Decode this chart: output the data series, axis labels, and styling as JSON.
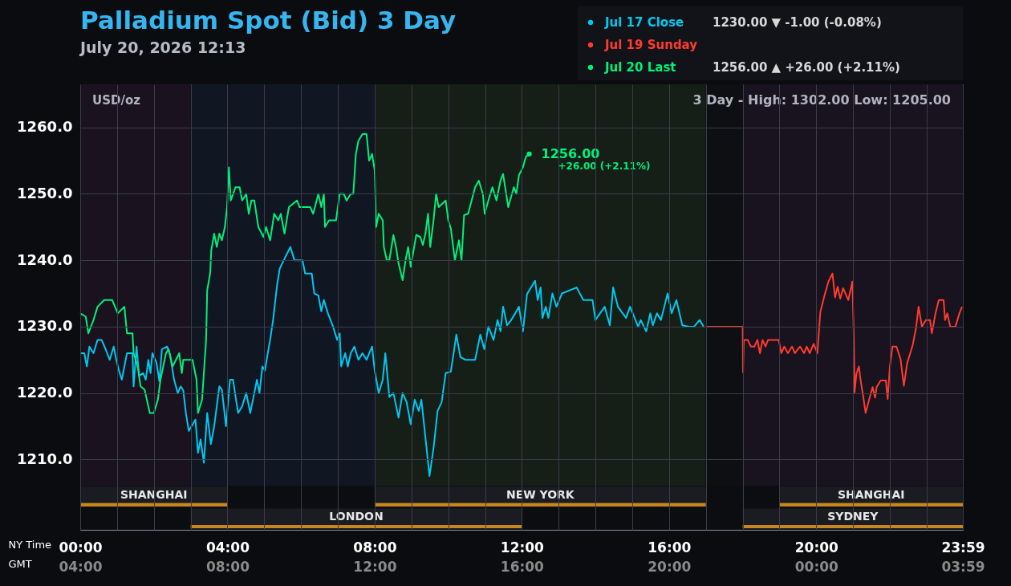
{
  "chart_data": {
    "type": "line",
    "title": "Palladium Spot (Bid) 3 Day",
    "subtitle": "July 20, 2026 12:13",
    "xlabel": "NY Time",
    "x2label": "GMT",
    "ylabel": "USD/oz",
    "xlim": [
      0,
      23.983
    ],
    "ylim": [
      1199.4,
      1266.5
    ],
    "xticks": [
      {
        "value": 0,
        "label": "00:00"
      },
      {
        "value": 1,
        "label": null
      },
      {
        "value": 2,
        "label": null
      },
      {
        "value": 3,
        "label": null
      },
      {
        "value": 4,
        "label": "04:00"
      },
      {
        "value": 5,
        "label": null
      },
      {
        "value": 6,
        "label": null
      },
      {
        "value": 7,
        "label": null
      },
      {
        "value": 8,
        "label": "08:00"
      },
      {
        "value": 9,
        "label": null
      },
      {
        "value": 10,
        "label": null
      },
      {
        "value": 11,
        "label": null
      },
      {
        "value": 12,
        "label": "12:00"
      },
      {
        "value": 13,
        "label": null
      },
      {
        "value": 14,
        "label": null
      },
      {
        "value": 15,
        "label": null
      },
      {
        "value": 16,
        "label": "16:00"
      },
      {
        "value": 17,
        "label": null
      },
      {
        "value": 18,
        "label": null
      },
      {
        "value": 19,
        "label": null
      },
      {
        "value": 20,
        "label": "20:00"
      },
      {
        "value": 21,
        "label": null
      },
      {
        "value": 22,
        "label": null
      },
      {
        "value": 23,
        "label": null
      },
      {
        "value": 23.983,
        "label": "23:59"
      }
    ],
    "x2lim": [
      "2026-07-20T04:00",
      "2026-07-21T03:59"
    ],
    "x2ticks": [
      {
        "value": "2026-07-20T04:00",
        "label": "04:00"
      },
      {
        "value": "2026-07-20T08:00",
        "label": "08:00"
      },
      {
        "value": "2026-07-20T12:00",
        "label": "12:00"
      },
      {
        "value": "2026-07-20T16:00",
        "label": "16:00"
      },
      {
        "value": "2026-07-20T20:00",
        "label": "20:00"
      },
      {
        "value": "2026-07-21T00:00",
        "label": "00:00"
      },
      {
        "value": "2026-07-21T03:59",
        "label": "03:59"
      }
    ],
    "yticks": [
      {
        "value": 1210,
        "label": "1210.0"
      },
      {
        "value": 1220,
        "label": "1220.0"
      },
      {
        "value": 1230,
        "label": "1230.0"
      },
      {
        "value": 1240,
        "label": "1240.0"
      },
      {
        "value": 1250,
        "label": "1250.0"
      },
      {
        "value": 1260,
        "label": "1260.0"
      }
    ],
    "grid": true,
    "legend": "top right",
    "marker": "none",
    "line_style": "solid",
    "series": [
      {
        "name": "Jul 17 Close",
        "color": "#00c8f0",
        "x": [
          0,
          0.11,
          0.18,
          0.25,
          0.36,
          0.47,
          0.58,
          0.69,
          0.8,
          0.91,
          0.98,
          1.05,
          1.13,
          1.2,
          1.27,
          1.42,
          1.45,
          1.53,
          1.6,
          1.71,
          1.78,
          1.85,
          1.91,
          1.96,
          2.07,
          2.15,
          2.22,
          2.36,
          2.44,
          2.55,
          2.65,
          2.73,
          2.8,
          2.87,
          2.95,
          3.13,
          3.2,
          3.27,
          3.36,
          3.45,
          3.55,
          3.64,
          3.71,
          3.78,
          3.85,
          3.96,
          4.07,
          4.15,
          4.29,
          4.4,
          4.51,
          4.62,
          4.73,
          4.8,
          4.87,
          4.95,
          5.02,
          5.09,
          5.16,
          5.24,
          5.35,
          5.42,
          5.53,
          5.71,
          5.82,
          6.04,
          6.11,
          6.29,
          6.36,
          6.47,
          6.55,
          6.62,
          6.73,
          6.87,
          6.98,
          7.05,
          7.09,
          7.2,
          7.27,
          7.35,
          7.45,
          7.56,
          7.67,
          7.78,
          7.93,
          8.0,
          8.11,
          8.22,
          8.29,
          8.4,
          8.51,
          8.65,
          8.76,
          8.87,
          8.98,
          9.09,
          9.2,
          9.27,
          9.38,
          9.49,
          9.6,
          9.71,
          9.82,
          9.93,
          10.07,
          10.22,
          10.33,
          10.47,
          10.73,
          10.87,
          10.98,
          11.09,
          11.23,
          11.34,
          11.42,
          11.49,
          11.6,
          11.71,
          11.82,
          11.92,
          12.03,
          12.14,
          12.36,
          12.43,
          12.51,
          12.56,
          12.65,
          12.72,
          12.83,
          12.94,
          13.09,
          13.49,
          13.67,
          13.92,
          14.0,
          14.25,
          14.39,
          14.48,
          14.61,
          14.83,
          14.94,
          15.16,
          15.23,
          15.38,
          15.49,
          15.56,
          15.67,
          15.78,
          15.96,
          16.07,
          16.2,
          16.36,
          16.54,
          16.68,
          16.83,
          16.94
        ],
        "values": [
          1226,
          1226,
          1224,
          1227,
          1226,
          1228,
          1228,
          1226.6,
          1225,
          1227,
          1225,
          1223.4,
          1222,
          1224,
          1226,
          1226,
          1221,
          1227,
          1222.6,
          1223,
          1222,
          1225,
          1223,
          1226,
          1224.6,
          1221.8,
          1226.6,
          1227,
          1225.8,
          1222,
          1220,
          1221,
          1220.4,
          1217,
          1214.3,
          1216,
          1211,
          1213,
          1209.5,
          1217,
          1212.3,
          1215,
          1218,
          1221,
          1220.5,
          1215,
          1222,
          1222,
          1217,
          1218,
          1220,
          1217,
          1220,
          1222,
          1220,
          1224,
          1223.4,
          1225.8,
          1228,
          1231,
          1236.3,
          1238.7,
          1240,
          1242,
          1240,
          1240,
          1238,
          1238,
          1235,
          1234.7,
          1232.3,
          1234,
          1232,
          1230,
          1228,
          1229,
          1224,
          1226,
          1224,
          1226,
          1227,
          1225,
          1226,
          1225,
          1227,
          1223.4,
          1220,
          1222,
          1226,
          1219.4,
          1220,
          1216.3,
          1220,
          1218.6,
          1215.3,
          1219,
          1217.3,
          1219,
          1213.3,
          1207.5,
          1211.7,
          1217.3,
          1218.6,
          1223,
          1223.2,
          1228.8,
          1225.4,
          1225,
          1225,
          1228.8,
          1226.6,
          1230,
          1228,
          1231,
          1229.3,
          1233,
          1230.2,
          1231,
          1232,
          1233,
          1229.3,
          1234.9,
          1236.9,
          1234,
          1235.9,
          1231.3,
          1233,
          1231.3,
          1235,
          1233,
          1235,
          1235.9,
          1234,
          1234,
          1231,
          1233,
          1230.2,
          1235.9,
          1233,
          1231.3,
          1233,
          1230,
          1231,
          1229.3,
          1232,
          1230.2,
          1232,
          1231,
          1235,
          1232,
          1234,
          1230.2,
          1230,
          1230,
          1231,
          1230
        ]
      },
      {
        "name": "Jul 19 Sunday",
        "color": "#ff3b30",
        "x": [
          17.0,
          18.0,
          18.01,
          18.03,
          18.14,
          18.22,
          18.32,
          18.4,
          18.47,
          18.54,
          18.62,
          18.69,
          18.98,
          19.05,
          19.13,
          19.23,
          19.34,
          19.42,
          19.56,
          19.67,
          19.74,
          19.82,
          19.93,
          20.03,
          20.11,
          20.22,
          20.33,
          20.44,
          20.51,
          20.58,
          20.65,
          20.73,
          20.87,
          20.98,
          21.02,
          21.04,
          21.09,
          21.16,
          21.2,
          21.27,
          21.34,
          21.45,
          21.53,
          21.6,
          21.64,
          21.75,
          21.89,
          21.94,
          22.0,
          22.07,
          22.18,
          22.29,
          22.38,
          22.47,
          22.62,
          22.71,
          22.78,
          22.87,
          22.98,
          23.09,
          23.14,
          23.24,
          23.33,
          23.46,
          23.5,
          23.56,
          23.64,
          23.78,
          23.89,
          23.96
        ],
        "values": [
          1230,
          1230,
          1223.1,
          1228,
          1228,
          1227,
          1227,
          1228,
          1226,
          1228,
          1227,
          1228,
          1228,
          1226,
          1227,
          1226,
          1227,
          1226,
          1227,
          1226,
          1227,
          1226,
          1227.4,
          1226,
          1232.2,
          1234.6,
          1236.8,
          1238,
          1234.4,
          1236,
          1234.2,
          1235.8,
          1234,
          1236.8,
          1228.6,
          1220.1,
          1222.9,
          1224,
          1222.1,
          1219.7,
          1217,
          1219.3,
          1220.9,
          1219.3,
          1220.9,
          1221.9,
          1221.9,
          1219.1,
          1224,
          1227,
          1227,
          1225.1,
          1221.1,
          1224.5,
          1227.2,
          1229.8,
          1233,
          1230,
          1231,
          1231,
          1229,
          1232,
          1234,
          1234,
          1231,
          1232,
          1230,
          1230,
          1232,
          1233
        ]
      },
      {
        "name": "Jul 20 Last",
        "color": "#00f07a",
        "x": [
          0,
          0.15,
          0.22,
          0.36,
          0.47,
          0.65,
          0.87,
          1.02,
          1.2,
          1.27,
          1.42,
          1.45,
          1.56,
          1.64,
          1.75,
          1.89,
          2.0,
          2.11,
          2.18,
          2.33,
          2.4,
          2.51,
          2.69,
          2.76,
          2.8,
          3.05,
          3.16,
          3.2,
          3.31,
          3.42,
          3.45,
          3.53,
          3.56,
          3.64,
          3.71,
          3.78,
          3.85,
          3.93,
          3.99,
          4.04,
          4.09,
          4.22,
          4.33,
          4.4,
          4.51,
          4.58,
          4.65,
          4.73,
          4.84,
          4.98,
          5.05,
          5.16,
          5.27,
          5.38,
          5.45,
          5.55,
          5.67,
          5.89,
          5.96,
          6.25,
          6.33,
          6.47,
          6.55,
          6.62,
          6.65,
          6.76,
          6.95,
          7.05,
          7.16,
          7.24,
          7.35,
          7.42,
          7.49,
          7.56,
          7.67,
          7.78,
          7.85,
          7.93,
          8.0,
          8.04,
          8.11,
          8.22,
          8.25,
          8.33,
          8.4,
          8.51,
          8.58,
          8.65,
          8.76,
          8.84,
          8.91,
          8.98,
          9.13,
          9.24,
          9.31,
          9.38,
          9.45,
          9.51,
          9.6,
          9.67,
          9.74,
          9.93,
          10.0,
          10.07,
          10.18,
          10.29,
          10.36,
          10.43,
          10.54,
          10.73,
          10.83,
          10.94,
          10.99,
          11.09,
          11.2,
          11.31,
          11.42,
          11.49,
          11.63,
          11.78,
          11.85,
          11.92,
          12.03,
          12.11,
          12.2
        ],
        "values": [
          1232,
          1231.5,
          1229,
          1231,
          1233,
          1234,
          1234,
          1232,
          1233,
          1229,
          1229,
          1226,
          1224,
          1221,
          1220.5,
          1217,
          1217,
          1219,
          1222,
          1226,
          1226.6,
          1224,
          1226,
          1223,
          1225,
          1225,
          1222,
          1217,
          1219,
          1228,
          1235.5,
          1238,
          1241.5,
          1244,
          1242,
          1244,
          1243,
          1245,
          1248,
          1254,
          1249,
          1251,
          1251,
          1249,
          1250,
          1247,
          1249,
          1249,
          1245,
          1243.5,
          1245,
          1243,
          1247,
          1246,
          1247,
          1244,
          1248,
          1249,
          1248,
          1248,
          1247,
          1250,
          1248,
          1250,
          1245,
          1246,
          1246,
          1250,
          1250,
          1249,
          1250,
          1250,
          1256,
          1258,
          1259,
          1259,
          1255,
          1256,
          1253.6,
          1245,
          1247,
          1246,
          1242,
          1240,
          1240,
          1243.8,
          1242,
          1239.5,
          1237,
          1240,
          1242,
          1239,
          1243.8,
          1243.5,
          1242.3,
          1244,
          1247,
          1242,
          1246,
          1250,
          1248,
          1249,
          1246,
          1244.8,
          1240,
          1243,
          1240,
          1246.8,
          1247,
          1251,
          1252,
          1250,
          1247,
          1249,
          1251,
          1249,
          1252,
          1253,
          1248,
          1251,
          1250,
          1252.8,
          1254,
          1255.6,
          1256
        ]
      }
    ],
    "bands": [
      {
        "axis": "x",
        "from": 0,
        "to": 3,
        "color": "#1a131f"
      },
      {
        "axis": "x",
        "from": 3,
        "to": 8,
        "color": "#111623"
      },
      {
        "axis": "x",
        "from": 8,
        "to": 17,
        "color": "#161e18"
      },
      {
        "axis": "x",
        "from": 17,
        "to": 18,
        "color": "#0d0f12"
      },
      {
        "axis": "x",
        "from": 18,
        "to": 23.983,
        "color": "#19121f"
      },
      {
        "axis": "x",
        "from": 0,
        "to": 4,
        "label": "SHANGHAI",
        "color": "#1a1c21"
      },
      {
        "axis": "x",
        "from": 3,
        "to": 12,
        "label": "LONDON",
        "color": "#1a1c21"
      },
      {
        "axis": "x",
        "from": 8,
        "to": 17,
        "label": "NEW YORK",
        "color": "#1a1c21"
      },
      {
        "axis": "x",
        "from": 19,
        "to": 23.983,
        "label": "SHANGHAI",
        "color": "#1a1c21"
      },
      {
        "axis": "x",
        "from": 18,
        "to": 23.983,
        "label": "SYDNEY",
        "color": "#1a1c21"
      }
    ],
    "annotations": [
      "1230.00  ▼   -1.00    (-0.08%)",
      "1256.00  ▲  +26.00    (+2.11%)",
      "3 Day - High: 1302.00  Low: 1205.00",
      "+26.00 (+2.11%)",
      {
        "text": "1256.00",
        "x": 12.2,
        "y": 1256
      }
    ]
  }
}
